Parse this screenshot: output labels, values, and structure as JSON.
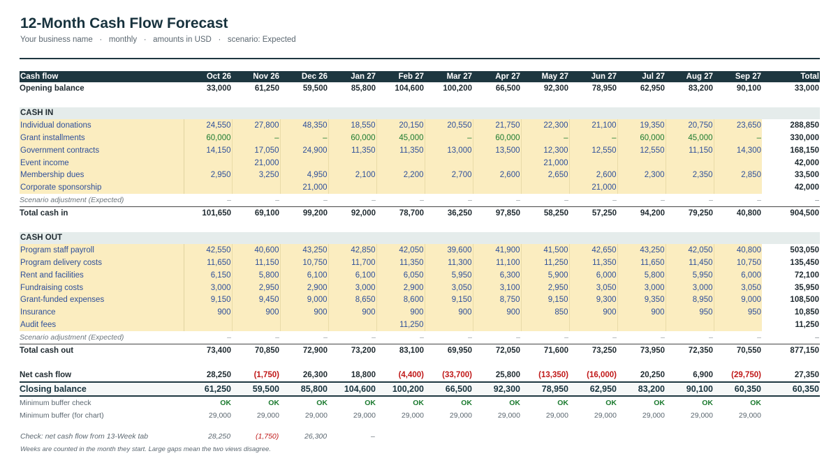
{
  "header": {
    "title": "12-Month Cash Flow Forecast",
    "subtitle_parts": [
      "Your business name",
      "monthly",
      "amounts in USD",
      "scenario: Expected"
    ],
    "separator": "·"
  },
  "columns": {
    "label": "Cash flow",
    "months": [
      "Oct 26",
      "Nov 26",
      "Dec 26",
      "Jan 27",
      "Feb 27",
      "Mar 27",
      "Apr 27",
      "May 27",
      "Jun 27",
      "Jul 27",
      "Aug 27",
      "Sep 27"
    ],
    "total": "Total"
  },
  "opening_balance": {
    "label": "Opening balance",
    "values": [
      "33,000",
      "61,250",
      "59,500",
      "85,800",
      "104,600",
      "100,200",
      "66,500",
      "92,300",
      "78,950",
      "62,950",
      "83,200",
      "90,100"
    ],
    "total": "33,000"
  },
  "cash_in": {
    "section_label": "CASH IN",
    "rows": [
      {
        "label": "Individual donations",
        "values": [
          "24,550",
          "27,800",
          "48,350",
          "18,550",
          "20,150",
          "20,550",
          "21,750",
          "22,300",
          "21,100",
          "19,350",
          "20,750",
          "23,650"
        ],
        "total": "288,850"
      },
      {
        "label": "Grant installments",
        "values": [
          "60,000",
          "–",
          "–",
          "60,000",
          "45,000",
          "–",
          "60,000",
          "–",
          "–",
          "60,000",
          "45,000",
          "–"
        ],
        "total": "330,000",
        "style": "green"
      },
      {
        "label": "Government contracts",
        "values": [
          "14,150",
          "17,050",
          "24,900",
          "11,350",
          "11,350",
          "13,000",
          "13,500",
          "12,300",
          "12,550",
          "12,550",
          "11,150",
          "14,300"
        ],
        "total": "168,150"
      },
      {
        "label": "Event income",
        "values": [
          "",
          "21,000",
          "",
          "",
          "",
          "",
          "",
          "21,000",
          "",
          "",
          "",
          ""
        ],
        "total": "42,000"
      },
      {
        "label": "Membership dues",
        "values": [
          "2,950",
          "3,250",
          "4,950",
          "2,100",
          "2,200",
          "2,700",
          "2,600",
          "2,650",
          "2,600",
          "2,300",
          "2,350",
          "2,850"
        ],
        "total": "33,500"
      },
      {
        "label": "Corporate sponsorship",
        "values": [
          "",
          "",
          "21,000",
          "",
          "",
          "",
          "",
          "",
          "21,000",
          "",
          "",
          ""
        ],
        "total": "42,000"
      }
    ],
    "scenario_adjustment": {
      "label": "Scenario adjustment (Expected)",
      "values": [
        "–",
        "–",
        "–",
        "–",
        "–",
        "–",
        "–",
        "–",
        "–",
        "–",
        "–",
        "–"
      ],
      "total": "–"
    },
    "total": {
      "label": "Total cash in",
      "values": [
        "101,650",
        "69,100",
        "99,200",
        "92,000",
        "78,700",
        "36,250",
        "97,850",
        "58,250",
        "57,250",
        "94,200",
        "79,250",
        "40,800"
      ],
      "total": "904,500"
    }
  },
  "cash_out": {
    "section_label": "CASH OUT",
    "rows": [
      {
        "label": "Program staff payroll",
        "values": [
          "42,550",
          "40,600",
          "43,250",
          "42,850",
          "42,050",
          "39,600",
          "41,900",
          "41,500",
          "42,650",
          "43,250",
          "42,050",
          "40,800"
        ],
        "total": "503,050"
      },
      {
        "label": "Program delivery costs",
        "values": [
          "11,650",
          "11,150",
          "10,750",
          "11,700",
          "11,350",
          "11,300",
          "11,100",
          "11,250",
          "11,350",
          "11,650",
          "11,450",
          "10,750"
        ],
        "total": "135,450"
      },
      {
        "label": "Rent and facilities",
        "values": [
          "6,150",
          "5,800",
          "6,100",
          "6,100",
          "6,050",
          "5,950",
          "6,300",
          "5,900",
          "6,000",
          "5,800",
          "5,950",
          "6,000"
        ],
        "total": "72,100"
      },
      {
        "label": "Fundraising costs",
        "values": [
          "3,000",
          "2,950",
          "2,900",
          "3,000",
          "2,900",
          "3,050",
          "3,100",
          "2,950",
          "3,050",
          "3,000",
          "3,000",
          "3,050"
        ],
        "total": "35,950"
      },
      {
        "label": "Grant-funded expenses",
        "values": [
          "9,150",
          "9,450",
          "9,000",
          "8,650",
          "8,600",
          "9,150",
          "8,750",
          "9,150",
          "9,300",
          "9,350",
          "8,950",
          "9,000"
        ],
        "total": "108,500"
      },
      {
        "label": "Insurance",
        "values": [
          "900",
          "900",
          "900",
          "900",
          "900",
          "900",
          "900",
          "850",
          "900",
          "900",
          "950",
          "950"
        ],
        "total": "10,850"
      },
      {
        "label": "Audit fees",
        "values": [
          "",
          "",
          "",
          "",
          "11,250",
          "",
          "",
          "",
          "",
          "",
          "",
          ""
        ],
        "total": "11,250"
      }
    ],
    "scenario_adjustment": {
      "label": "Scenario adjustment (Expected)",
      "values": [
        "–",
        "–",
        "–",
        "–",
        "–",
        "–",
        "–",
        "–",
        "–",
        "–",
        "–",
        "–"
      ],
      "total": "–"
    },
    "total": {
      "label": "Total cash out",
      "values": [
        "73,400",
        "70,850",
        "72,900",
        "73,200",
        "83,100",
        "69,950",
        "72,050",
        "71,600",
        "73,250",
        "73,950",
        "72,350",
        "70,550"
      ],
      "total": "877,150"
    }
  },
  "net_cash_flow": {
    "label": "Net cash flow",
    "values": [
      "28,250",
      "(1,750)",
      "26,300",
      "18,800",
      "(4,400)",
      "(33,700)",
      "25,800",
      "(13,350)",
      "(16,000)",
      "20,250",
      "6,900",
      "(29,750)"
    ],
    "total": "27,350"
  },
  "closing_balance": {
    "label": "Closing balance",
    "values": [
      "61,250",
      "59,500",
      "85,800",
      "104,600",
      "100,200",
      "66,500",
      "92,300",
      "78,950",
      "62,950",
      "83,200",
      "90,100",
      "60,350"
    ],
    "total": "60,350"
  },
  "minimum_buffer_check": {
    "label": "Minimum buffer check",
    "values": [
      "OK",
      "OK",
      "OK",
      "OK",
      "OK",
      "OK",
      "OK",
      "OK",
      "OK",
      "OK",
      "OK",
      "OK"
    ]
  },
  "minimum_buffer_chart": {
    "label": "Minimum buffer (for chart)",
    "values": [
      "29,000",
      "29,000",
      "29,000",
      "29,000",
      "29,000",
      "29,000",
      "29,000",
      "29,000",
      "29,000",
      "29,000",
      "29,000",
      "29,000"
    ]
  },
  "check_13_week": {
    "label": "Check: net cash flow from 13-Week tab",
    "values": [
      "28,250",
      "(1,750)",
      "26,300",
      "–"
    ]
  },
  "footnote": "Weeks are counted in the month they start. Large gaps mean the two views disagree.",
  "colors": {
    "header_bg": "#1e3740",
    "input_bg": "#fbedc0",
    "input_text": "#2e4f9a",
    "positive": "#1b7a2f",
    "negative": "#c01818",
    "section_bg": "#e5eceb"
  }
}
